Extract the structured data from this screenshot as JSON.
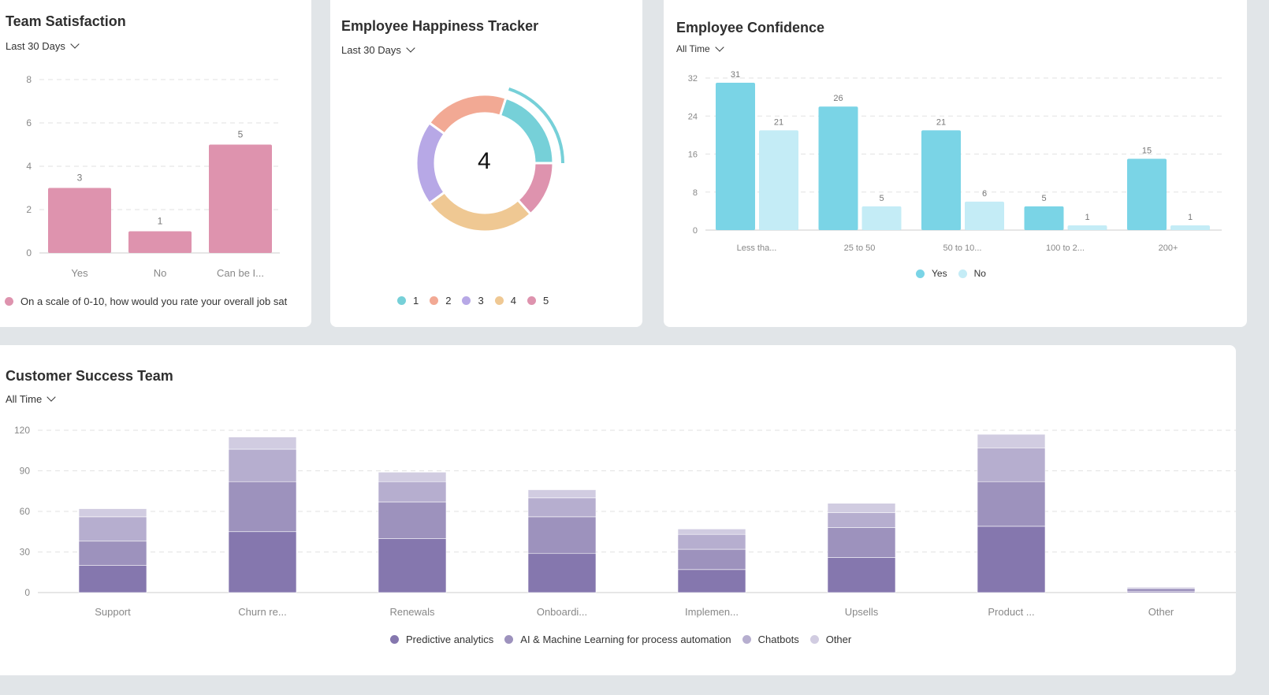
{
  "team_satisfaction": {
    "title": "Team Satisfaction",
    "filter": "Last 30 Days",
    "legend": "On a scale of 0-10, how would you rate your overall job sat",
    "color": "#de93ae"
  },
  "happiness": {
    "title": "Employee Happiness Tracker",
    "filter": "Last 30 Days",
    "center_value": "4",
    "legend": [
      {
        "label": "1",
        "color": "#76d0d8"
      },
      {
        "label": "2",
        "color": "#f2a994"
      },
      {
        "label": "3",
        "color": "#b7a8e6"
      },
      {
        "label": "4",
        "color": "#efc893"
      },
      {
        "label": "5",
        "color": "#de93ae"
      }
    ]
  },
  "confidence": {
    "title": "Employee Confidence",
    "filter": "All Time",
    "legend": [
      {
        "label": "Yes",
        "color": "#7ad4e6"
      },
      {
        "label": "No",
        "color": "#c4ecf6"
      }
    ]
  },
  "customer_success": {
    "title": "Customer Success Team",
    "filter": "All Time",
    "legend": [
      {
        "label": "Predictive analytics",
        "color": "#8577ae"
      },
      {
        "label": "AI & Machine Learning for process automation",
        "color": "#9d92bd"
      },
      {
        "label": "Chatbots",
        "color": "#b6aecf"
      },
      {
        "label": "Other",
        "color": "#d1cce1"
      }
    ]
  },
  "chart_data": [
    {
      "type": "bar",
      "title": "Team Satisfaction",
      "categories": [
        "Yes",
        "No",
        "Can be I..."
      ],
      "values": [
        3,
        1,
        5
      ],
      "data_labels": [
        "3",
        "1",
        "5"
      ],
      "ylim": [
        0,
        8
      ],
      "yticks": [
        "0",
        "2",
        "4",
        "6",
        "8"
      ],
      "grid": true,
      "legend_position": "bottom"
    },
    {
      "type": "pie",
      "title": "Employee Happiness Tracker",
      "categories": [
        "1",
        "2",
        "3",
        "4",
        "5"
      ],
      "values": [
        3,
        3,
        3,
        4,
        2
      ],
      "donut": true,
      "highlighted": "1",
      "legend_position": "bottom"
    },
    {
      "type": "bar",
      "title": "Employee Confidence",
      "categories": [
        "Less tha...",
        "25 to 50",
        "50 to 10...",
        "100 to 2...",
        "200+"
      ],
      "series": [
        {
          "name": "Yes",
          "values": [
            31,
            26,
            21,
            5,
            15
          ]
        },
        {
          "name": "No",
          "values": [
            21,
            5,
            6,
            1,
            1
          ]
        }
      ],
      "ylim": [
        0,
        32
      ],
      "yticks": [
        "0",
        "8",
        "16",
        "24",
        "32"
      ],
      "grid": true,
      "legend_position": "bottom"
    },
    {
      "type": "bar",
      "stacked": true,
      "title": "Customer Success Team",
      "categories": [
        "Support",
        "Churn re...",
        "Renewals",
        "Onboardi...",
        "Implemen...",
        "Upsells",
        "Product ...",
        "Other"
      ],
      "series": [
        {
          "name": "Predictive analytics",
          "values": [
            20,
            45,
            40,
            29,
            17,
            26,
            49,
            1
          ]
        },
        {
          "name": "AI & Machine Learning for process automation",
          "values": [
            18,
            37,
            27,
            27,
            15,
            22,
            33,
            2
          ]
        },
        {
          "name": "Chatbots",
          "values": [
            18,
            24,
            15,
            14,
            11,
            11,
            25,
            0
          ]
        },
        {
          "name": "Other",
          "values": [
            6,
            9,
            7,
            6,
            4,
            7,
            10,
            1
          ]
        }
      ],
      "ylim": [
        0,
        120
      ],
      "yticks": [
        "0",
        "30",
        "60",
        "90",
        "120"
      ],
      "grid": true,
      "legend_position": "bottom"
    }
  ]
}
